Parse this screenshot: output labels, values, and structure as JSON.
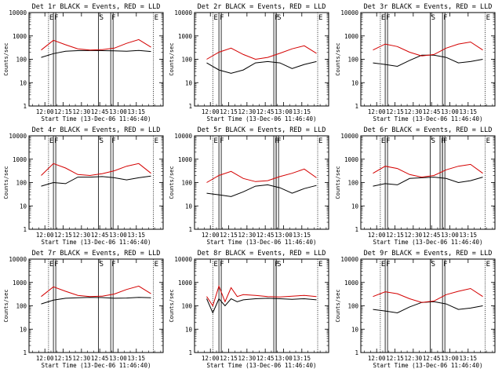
{
  "figure": {
    "xlabel": "Start Time (13-Dec-06 11:46:40)",
    "ylabel": "Counts/sec",
    "xticks": [
      "12:00",
      "12:15",
      "12:30",
      "12:45",
      "13:00",
      "13:15"
    ],
    "yticks": [
      "1",
      "10",
      "100",
      "1000",
      "10000"
    ],
    "flag_letters": {
      "s": "S",
      "f": "F",
      "e": "E"
    },
    "colors": {
      "events": "#000000",
      "lld": "#d40000"
    }
  },
  "chart_data": [
    {
      "type": "line",
      "title": "Det 1r BLACK = Events, RED = LLD",
      "yscale": "log",
      "ylim": [
        1,
        10000
      ],
      "x_minutes_after_start": [
        10,
        20,
        30,
        40,
        50,
        60,
        70,
        80,
        90,
        100
      ],
      "series": [
        {
          "name": "Events",
          "values": [
            120,
            175,
            220,
            235,
            240,
            235,
            230,
            220,
            240,
            215
          ]
        },
        {
          "name": "LLD",
          "values": [
            250,
            650,
            420,
            280,
            250,
            260,
            300,
            480,
            700,
            330
          ]
        }
      ],
      "flags": [
        {
          "letter": "E",
          "x": 16
        },
        {
          "letter": "F",
          "x": 20
        },
        {
          "letter": "S",
          "x": 57
        },
        {
          "letter": "F",
          "x": 67
        },
        {
          "letter": "E",
          "x": 102
        }
      ]
    },
    {
      "type": "line",
      "title": "Det 2r BLACK = Events, RED = LLD",
      "yscale": "log",
      "ylim": [
        1,
        10000
      ],
      "x_minutes_after_start": [
        10,
        20,
        30,
        40,
        50,
        60,
        70,
        80,
        90,
        100
      ],
      "series": [
        {
          "name": "Events",
          "values": [
            70,
            35,
            25,
            35,
            70,
            80,
            70,
            40,
            60,
            80
          ]
        },
        {
          "name": "LLD",
          "values": [
            100,
            200,
            300,
            160,
            100,
            120,
            180,
            280,
            380,
            180
          ]
        }
      ],
      "flags": [
        {
          "letter": "E",
          "x": 15
        },
        {
          "letter": "F",
          "x": 20
        },
        {
          "letter": "F",
          "x": 65
        },
        {
          "letter": "S",
          "x": 67
        },
        {
          "letter": "E",
          "x": 101
        }
      ]
    },
    {
      "type": "line",
      "title": "Det 3r BLACK = Events, RED = LLD",
      "yscale": "log",
      "ylim": [
        1,
        10000
      ],
      "x_minutes_after_start": [
        10,
        20,
        30,
        40,
        50,
        60,
        70,
        80,
        90,
        100
      ],
      "series": [
        {
          "name": "Events",
          "values": [
            70,
            60,
            50,
            90,
            150,
            150,
            120,
            70,
            80,
            100
          ]
        },
        {
          "name": "LLD",
          "values": [
            250,
            450,
            350,
            200,
            140,
            160,
            300,
            450,
            550,
            250
          ]
        }
      ],
      "flags": [
        {
          "letter": "E",
          "x": 16
        },
        {
          "letter": "F",
          "x": 20
        },
        {
          "letter": "S",
          "x": 57
        },
        {
          "letter": "F",
          "x": 67
        },
        {
          "letter": "E",
          "x": 102
        }
      ]
    },
    {
      "type": "line",
      "title": "Det 4r BLACK = Events, RED = LLD",
      "yscale": "log",
      "ylim": [
        1,
        10000
      ],
      "x_minutes_after_start": [
        10,
        20,
        30,
        40,
        50,
        60,
        70,
        80,
        90,
        100
      ],
      "series": [
        {
          "name": "Events",
          "values": [
            70,
            100,
            90,
            170,
            170,
            180,
            160,
            130,
            160,
            190
          ]
        },
        {
          "name": "LLD",
          "values": [
            200,
            650,
            420,
            220,
            200,
            240,
            320,
            500,
            650,
            250
          ]
        }
      ],
      "flags": [
        {
          "letter": "E",
          "x": 16
        },
        {
          "letter": "F",
          "x": 20
        },
        {
          "letter": "S",
          "x": 57
        },
        {
          "letter": "F",
          "x": 67
        },
        {
          "letter": "E",
          "x": 102
        }
      ]
    },
    {
      "type": "line",
      "title": "Det 5r BLACK = Events, RED = LLD",
      "yscale": "log",
      "ylim": [
        1,
        10000
      ],
      "x_minutes_after_start": [
        10,
        20,
        30,
        40,
        50,
        60,
        70,
        80,
        90,
        100
      ],
      "series": [
        {
          "name": "Events",
          "values": [
            35,
            30,
            25,
            40,
            70,
            80,
            60,
            35,
            55,
            75
          ]
        },
        {
          "name": "LLD",
          "values": [
            100,
            200,
            300,
            150,
            110,
            120,
            180,
            250,
            380,
            160
          ]
        }
      ],
      "flags": [
        {
          "letter": "E",
          "x": 15
        },
        {
          "letter": "F",
          "x": 20
        },
        {
          "letter": "F",
          "x": 65
        },
        {
          "letter": "F",
          "x": 67
        },
        {
          "letter": "E",
          "x": 101
        }
      ]
    },
    {
      "type": "line",
      "title": "Det 6r BLACK = Events, RED = LLD",
      "yscale": "log",
      "ylim": [
        1,
        10000
      ],
      "x_minutes_after_start": [
        10,
        20,
        30,
        40,
        50,
        60,
        70,
        80,
        90,
        100
      ],
      "series": [
        {
          "name": "Events",
          "values": [
            70,
            90,
            80,
            150,
            160,
            170,
            150,
            100,
            120,
            170
          ]
        },
        {
          "name": "LLD",
          "values": [
            250,
            500,
            400,
            220,
            170,
            200,
            350,
            500,
            600,
            250
          ]
        }
      ],
      "flags": [
        {
          "letter": "E",
          "x": 16
        },
        {
          "letter": "F",
          "x": 20
        },
        {
          "letter": "S",
          "x": 57
        },
        {
          "letter": "F",
          "x": 65
        },
        {
          "letter": "F",
          "x": 67
        },
        {
          "letter": "E",
          "x": 102
        }
      ]
    },
    {
      "type": "line",
      "title": "Det 7r BLACK = Events, RED = LLD",
      "yscale": "log",
      "ylim": [
        1,
        10000
      ],
      "x_minutes_after_start": [
        10,
        20,
        30,
        40,
        50,
        60,
        70,
        80,
        90,
        100
      ],
      "series": [
        {
          "name": "Events",
          "values": [
            120,
            175,
            210,
            220,
            230,
            225,
            210,
            215,
            230,
            220
          ]
        },
        {
          "name": "LLD",
          "values": [
            250,
            650,
            420,
            280,
            250,
            260,
            320,
            500,
            700,
            330
          ]
        }
      ],
      "flags": [
        {
          "letter": "E",
          "x": 16
        },
        {
          "letter": "F",
          "x": 20
        },
        {
          "letter": "S",
          "x": 57
        },
        {
          "letter": "F",
          "x": 67
        },
        {
          "letter": "E",
          "x": 102
        }
      ]
    },
    {
      "type": "line",
      "title": "Det 8r BLACK = Events, RED = LLD",
      "yscale": "log",
      "ylim": [
        1,
        10000
      ],
      "x_minutes_after_start": [
        10,
        15,
        20,
        25,
        30,
        35,
        40,
        50,
        60,
        70,
        80,
        90,
        100
      ],
      "series": [
        {
          "name": "Events",
          "values": [
            200,
            50,
            200,
            100,
            200,
            150,
            180,
            200,
            210,
            200,
            190,
            200,
            180
          ]
        },
        {
          "name": "LLD",
          "values": [
            250,
            100,
            700,
            150,
            600,
            250,
            300,
            280,
            250,
            240,
            260,
            280,
            250
          ]
        }
      ],
      "flags": [
        {
          "letter": "E",
          "x": 15
        },
        {
          "letter": "F",
          "x": 20
        },
        {
          "letter": "F",
          "x": 65
        },
        {
          "letter": "S",
          "x": 67
        },
        {
          "letter": "E",
          "x": 101
        }
      ]
    },
    {
      "type": "line",
      "title": "Det 9r BLACK = Events, RED = LLD",
      "yscale": "log",
      "ylim": [
        1,
        10000
      ],
      "x_minutes_after_start": [
        10,
        20,
        30,
        40,
        50,
        60,
        70,
        80,
        90,
        100
      ],
      "series": [
        {
          "name": "Events",
          "values": [
            70,
            60,
            50,
            90,
            140,
            150,
            120,
            70,
            80,
            100
          ]
        },
        {
          "name": "LLD",
          "values": [
            250,
            400,
            330,
            200,
            140,
            160,
            300,
            420,
            550,
            250
          ]
        }
      ],
      "flags": [
        {
          "letter": "E",
          "x": 16
        },
        {
          "letter": "F",
          "x": 20
        },
        {
          "letter": "S",
          "x": 57
        },
        {
          "letter": "F",
          "x": 67
        },
        {
          "letter": "E",
          "x": 102
        }
      ]
    }
  ]
}
